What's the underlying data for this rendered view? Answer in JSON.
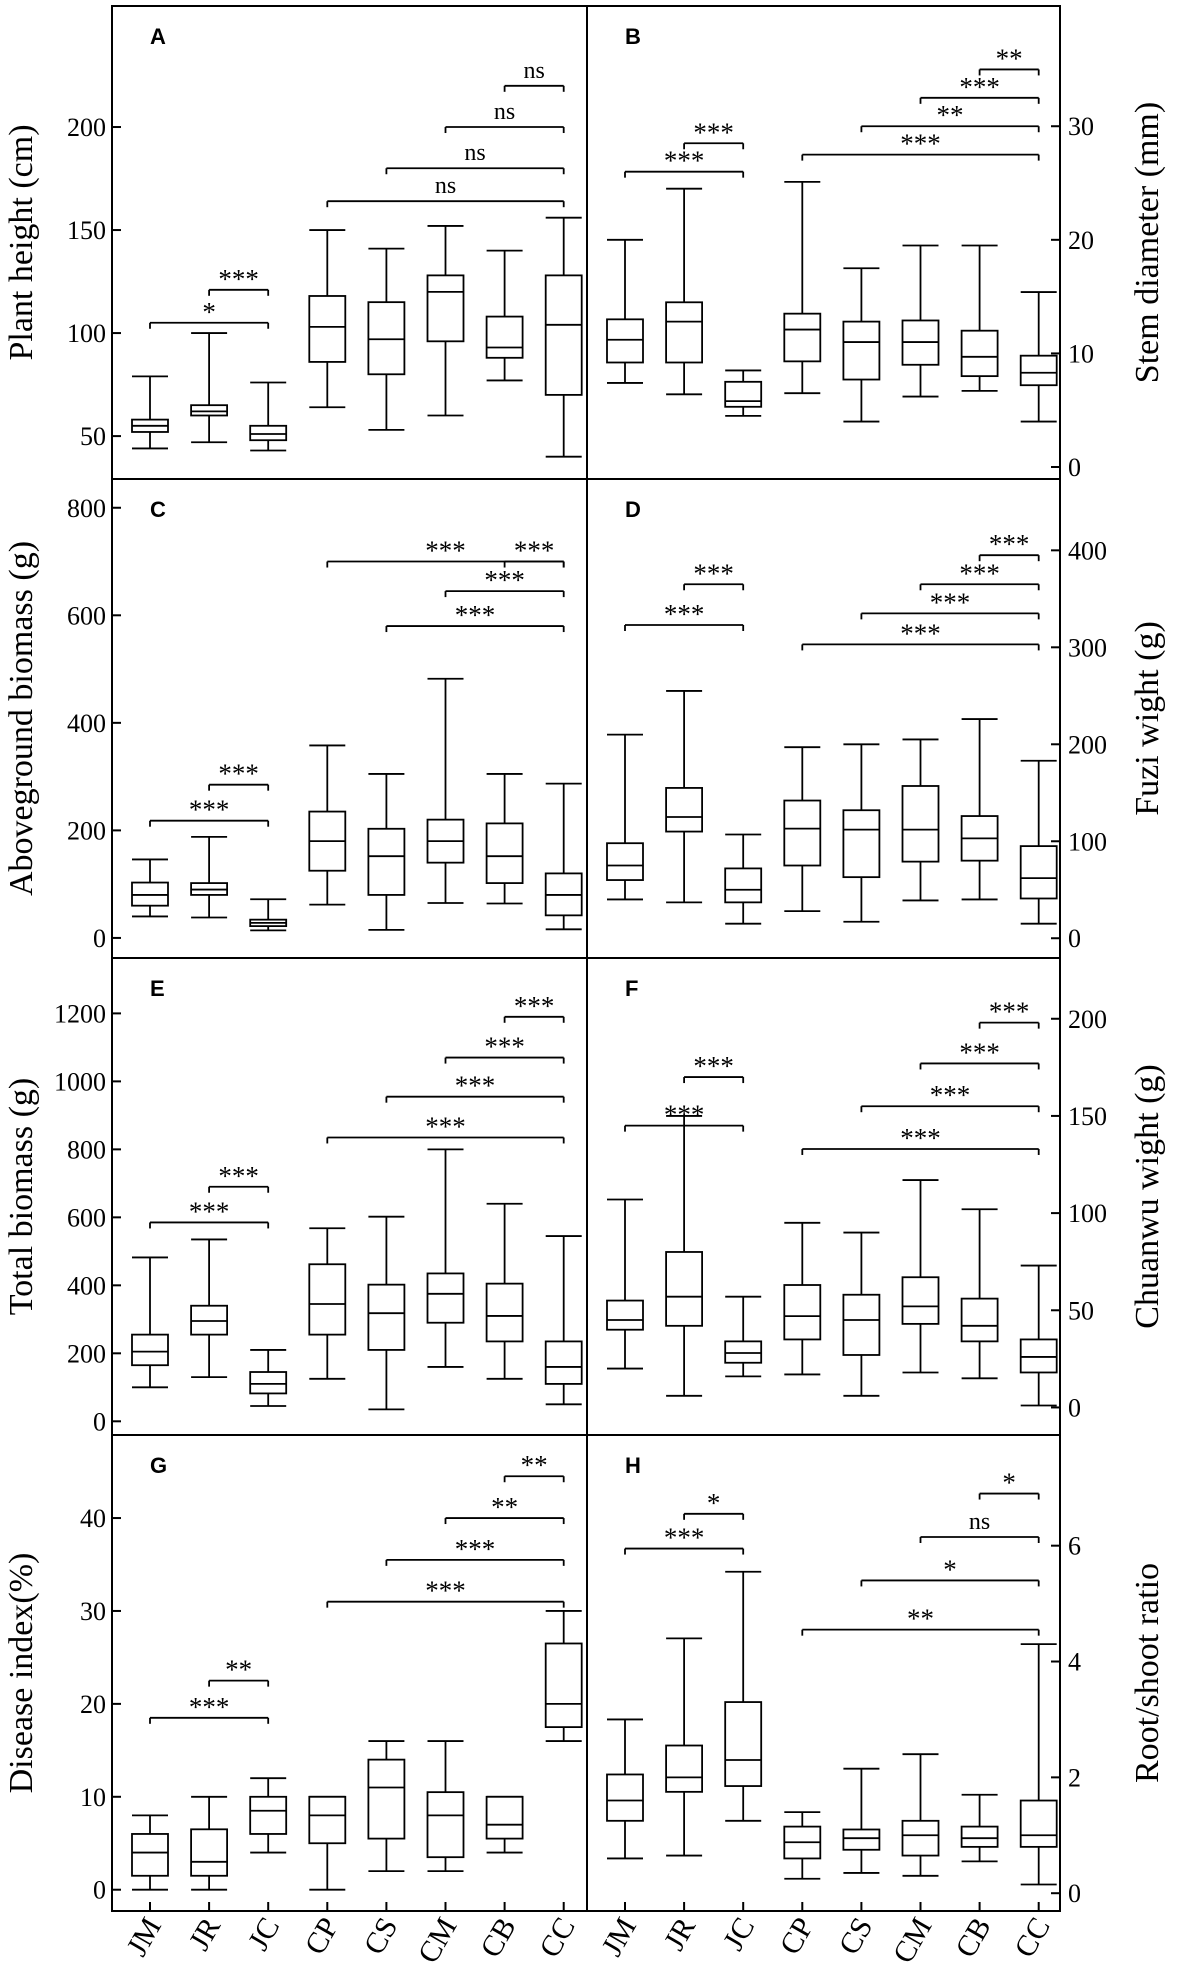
{
  "groups": [
    "JM",
    "JR",
    "JC",
    "CP",
    "CS",
    "CM",
    "CB",
    "CC"
  ],
  "chart_data": [
    {
      "type": "box",
      "id": "A",
      "panel_label": "A",
      "ylabel": "Plant height (cm)",
      "axis_side": "left",
      "ylim": [
        35,
        250
      ],
      "yticks": [
        "50",
        "100",
        "150",
        "200"
      ],
      "boxes": [
        {
          "group": "JM",
          "min": 44,
          "q1": 52,
          "median": 55,
          "q3": 58,
          "max": 79
        },
        {
          "group": "JR",
          "min": 47,
          "q1": 60,
          "median": 62,
          "q3": 65,
          "max": 100
        },
        {
          "group": "JC",
          "min": 43,
          "q1": 48,
          "median": 51,
          "q3": 55,
          "max": 76
        },
        {
          "group": "CP",
          "min": 64,
          "q1": 86,
          "median": 103,
          "q3": 118,
          "max": 150
        },
        {
          "group": "CS",
          "min": 53,
          "q1": 80,
          "median": 97,
          "q3": 115,
          "max": 141
        },
        {
          "group": "CM",
          "min": 60,
          "q1": 96,
          "median": 120,
          "q3": 128,
          "max": 152
        },
        {
          "group": "CB",
          "min": 77,
          "q1": 88,
          "median": 93,
          "q3": 108,
          "max": 140
        },
        {
          "group": "CC",
          "min": 40,
          "q1": 70,
          "median": 104,
          "q3": 128,
          "max": 156
        }
      ],
      "comparisons": [
        {
          "from": "JM",
          "to": "JC",
          "value": 105,
          "label": "*"
        },
        {
          "from": "JR",
          "to": "JC",
          "value": 121,
          "label": "***"
        },
        {
          "from": "CP",
          "to": "CC",
          "value": 164,
          "label": "ns"
        },
        {
          "from": "CS",
          "to": "CC",
          "value": 180,
          "label": "ns"
        },
        {
          "from": "CM",
          "to": "CC",
          "value": 200,
          "label": "ns"
        },
        {
          "from": "CB",
          "to": "CC",
          "value": 220,
          "label": "ns"
        }
      ]
    },
    {
      "type": "box",
      "id": "B",
      "panel_label": "B",
      "ylabel": "Stem diameter (mm)",
      "axis_side": "right",
      "ylim": [
        0,
        39
      ],
      "yticks": [
        "0",
        "10",
        "20",
        "30"
      ],
      "boxes": [
        {
          "group": "JM",
          "min": 7.4,
          "q1": 9.2,
          "median": 11.2,
          "q3": 13.0,
          "max": 20.0
        },
        {
          "group": "JR",
          "min": 6.4,
          "q1": 9.2,
          "median": 12.8,
          "q3": 14.5,
          "max": 24.5
        },
        {
          "group": "JC",
          "min": 4.5,
          "q1": 5.3,
          "median": 5.8,
          "q3": 7.5,
          "max": 8.5
        },
        {
          "group": "CP",
          "min": 6.5,
          "q1": 9.3,
          "median": 12.1,
          "q3": 13.5,
          "max": 25.1
        },
        {
          "group": "CS",
          "min": 4.0,
          "q1": 7.7,
          "median": 11.0,
          "q3": 12.8,
          "max": 17.5
        },
        {
          "group": "CM",
          "min": 6.2,
          "q1": 9.0,
          "median": 11.0,
          "q3": 12.9,
          "max": 19.5
        },
        {
          "group": "CB",
          "min": 6.7,
          "q1": 8.0,
          "median": 9.7,
          "q3": 12.0,
          "max": 19.5
        },
        {
          "group": "CC",
          "min": 4.0,
          "q1": 7.2,
          "median": 8.3,
          "q3": 9.8,
          "max": 15.4
        }
      ],
      "comparisons": [
        {
          "from": "JM",
          "to": "JC",
          "value": 26.0,
          "label": "***"
        },
        {
          "from": "JR",
          "to": "JC",
          "value": 28.5,
          "label": "***"
        },
        {
          "from": "CP",
          "to": "CC",
          "value": 27.5,
          "label": "***"
        },
        {
          "from": "CS",
          "to": "CC",
          "value": 30.0,
          "label": "**"
        },
        {
          "from": "CM",
          "to": "CC",
          "value": 32.5,
          "label": "***"
        },
        {
          "from": "CB",
          "to": "CC",
          "value": 35.0,
          "label": "**"
        }
      ]
    },
    {
      "type": "box",
      "id": "C",
      "panel_label": "C",
      "ylabel": "Aboveground biomass (g)",
      "axis_side": "left",
      "ylim": [
        -15,
        820
      ],
      "yticks": [
        "0",
        "200",
        "400",
        "600",
        "800"
      ],
      "boxes": [
        {
          "group": "JM",
          "min": 40,
          "q1": 60,
          "median": 80,
          "q3": 103,
          "max": 146
        },
        {
          "group": "JR",
          "min": 38,
          "q1": 80,
          "median": 90,
          "q3": 102,
          "max": 188
        },
        {
          "group": "JC",
          "min": 14,
          "q1": 22,
          "median": 28,
          "q3": 34,
          "max": 72
        },
        {
          "group": "CP",
          "min": 62,
          "q1": 125,
          "median": 180,
          "q3": 235,
          "max": 358
        },
        {
          "group": "CS",
          "min": 15,
          "q1": 80,
          "median": 152,
          "q3": 203,
          "max": 305
        },
        {
          "group": "CM",
          "min": 65,
          "q1": 140,
          "median": 180,
          "q3": 220,
          "max": 482
        },
        {
          "group": "CB",
          "min": 64,
          "q1": 102,
          "median": 152,
          "q3": 213,
          "max": 305
        },
        {
          "group": "CC",
          "min": 16,
          "q1": 42,
          "median": 80,
          "q3": 120,
          "max": 287
        }
      ],
      "comparisons": [
        {
          "from": "JM",
          "to": "JC",
          "value": 218,
          "label": "***"
        },
        {
          "from": "JR",
          "to": "JC",
          "value": 285,
          "label": "***"
        },
        {
          "from": "CP",
          "to": "CC",
          "value": 700,
          "label": "***"
        },
        {
          "from": "CS",
          "to": "CC",
          "value": 580,
          "label": "***"
        },
        {
          "from": "CM",
          "to": "CC",
          "value": 645,
          "label": "***"
        },
        {
          "from": "CB",
          "to": "CC",
          "value": 700,
          "label": "***"
        }
      ]
    },
    {
      "type": "box",
      "id": "D",
      "panel_label": "D",
      "ylabel": "Fuzi wight (g)",
      "axis_side": "right",
      "ylim": [
        -8,
        455
      ],
      "yticks": [
        "0",
        "100",
        "200",
        "300",
        "400"
      ],
      "boxes": [
        {
          "group": "JM",
          "min": 40,
          "q1": 60,
          "median": 75,
          "q3": 98,
          "max": 210
        },
        {
          "group": "JR",
          "min": 37,
          "q1": 110,
          "median": 125,
          "q3": 155,
          "max": 255
        },
        {
          "group": "JC",
          "min": 15,
          "q1": 37,
          "median": 50,
          "q3": 72,
          "max": 107
        },
        {
          "group": "CP",
          "min": 28,
          "q1": 75,
          "median": 113,
          "q3": 142,
          "max": 197
        },
        {
          "group": "CS",
          "min": 17,
          "q1": 63,
          "median": 112,
          "q3": 132,
          "max": 200
        },
        {
          "group": "CM",
          "min": 39,
          "q1": 79,
          "median": 112,
          "q3": 157,
          "max": 205
        },
        {
          "group": "CB",
          "min": 40,
          "q1": 80,
          "median": 103,
          "q3": 126,
          "max": 226
        },
        {
          "group": "CC",
          "min": 15,
          "q1": 41,
          "median": 62,
          "q3": 95,
          "max": 183
        }
      ],
      "comparisons": [
        {
          "from": "JM",
          "to": "JC",
          "value": 323,
          "label": "***"
        },
        {
          "from": "JR",
          "to": "JC",
          "value": 365,
          "label": "***"
        },
        {
          "from": "CP",
          "to": "CC",
          "value": 303,
          "label": "***"
        },
        {
          "from": "CS",
          "to": "CC",
          "value": 335,
          "label": "***"
        },
        {
          "from": "CM",
          "to": "CC",
          "value": 365,
          "label": "***"
        },
        {
          "from": "CB",
          "to": "CC",
          "value": 395,
          "label": "***"
        }
      ]
    },
    {
      "type": "box",
      "id": "E",
      "panel_label": "E",
      "ylabel": "Total biomass (g)",
      "axis_side": "left",
      "ylim": [
        -5,
        1310
      ],
      "yticks": [
        "0",
        "200",
        "400",
        "600",
        "800",
        "1000",
        "1200"
      ],
      "boxes": [
        {
          "group": "JM",
          "min": 100,
          "q1": 165,
          "median": 205,
          "q3": 255,
          "max": 482
        },
        {
          "group": "JR",
          "min": 130,
          "q1": 255,
          "median": 295,
          "q3": 340,
          "max": 535
        },
        {
          "group": "JC",
          "min": 45,
          "q1": 82,
          "median": 110,
          "q3": 145,
          "max": 210
        },
        {
          "group": "CP",
          "min": 125,
          "q1": 255,
          "median": 345,
          "q3": 462,
          "max": 568
        },
        {
          "group": "CS",
          "min": 35,
          "q1": 210,
          "median": 318,
          "q3": 402,
          "max": 602
        },
        {
          "group": "CM",
          "min": 160,
          "q1": 290,
          "median": 375,
          "q3": 435,
          "max": 800
        },
        {
          "group": "CB",
          "min": 125,
          "q1": 235,
          "median": 310,
          "q3": 405,
          "max": 640
        },
        {
          "group": "CC",
          "min": 50,
          "q1": 110,
          "median": 160,
          "q3": 235,
          "max": 545
        }
      ],
      "comparisons": [
        {
          "from": "JM",
          "to": "JC",
          "value": 585,
          "label": "***"
        },
        {
          "from": "JR",
          "to": "JC",
          "value": 690,
          "label": "***"
        },
        {
          "from": "CP",
          "to": "CC",
          "value": 835,
          "label": "***"
        },
        {
          "from": "CS",
          "to": "CC",
          "value": 955,
          "label": "***"
        },
        {
          "from": "CM",
          "to": "CC",
          "value": 1070,
          "label": "***"
        },
        {
          "from": "CB",
          "to": "CC",
          "value": 1190,
          "label": "***"
        }
      ]
    },
    {
      "type": "box",
      "id": "F",
      "panel_label": "F",
      "ylabel": "Chuanwu wight (g)",
      "axis_side": "right",
      "ylim": [
        -8,
        222
      ],
      "yticks": [
        "0",
        "50",
        "100",
        "150",
        "200"
      ],
      "boxes": [
        {
          "group": "JM",
          "min": 20,
          "q1": 40,
          "median": 45,
          "q3": 55,
          "max": 107
        },
        {
          "group": "JR",
          "min": 6,
          "q1": 42,
          "median": 57,
          "q3": 80,
          "max": 150
        },
        {
          "group": "JC",
          "min": 16,
          "q1": 23,
          "median": 28,
          "q3": 34,
          "max": 57
        },
        {
          "group": "CP",
          "min": 17,
          "q1": 35,
          "median": 47,
          "q3": 63,
          "max": 95
        },
        {
          "group": "CS",
          "min": 6,
          "q1": 27,
          "median": 45,
          "q3": 58,
          "max": 90
        },
        {
          "group": "CM",
          "min": 18,
          "q1": 43,
          "median": 52,
          "q3": 67,
          "max": 117
        },
        {
          "group": "CB",
          "min": 15,
          "q1": 34,
          "median": 42,
          "q3": 56,
          "max": 102
        },
        {
          "group": "CC",
          "min": 1,
          "q1": 18,
          "median": 26,
          "q3": 35,
          "max": 73
        }
      ],
      "comparisons": [
        {
          "from": "JM",
          "to": "JC",
          "value": 145,
          "label": "***"
        },
        {
          "from": "JR",
          "to": "JC",
          "value": 170,
          "label": "***"
        },
        {
          "from": "CP",
          "to": "CC",
          "value": 133,
          "label": "***"
        },
        {
          "from": "CS",
          "to": "CC",
          "value": 155,
          "label": "***"
        },
        {
          "from": "CM",
          "to": "CC",
          "value": 177,
          "label": "***"
        },
        {
          "from": "CB",
          "to": "CC",
          "value": 198,
          "label": "***"
        }
      ]
    },
    {
      "type": "box",
      "id": "G",
      "panel_label": "G",
      "ylabel": "Disease index(%)",
      "axis_side": "left",
      "ylim": [
        -1,
        47
      ],
      "yticks": [
        "0",
        "10",
        "20",
        "30",
        "40"
      ],
      "boxes": [
        {
          "group": "JM",
          "min": 0,
          "q1": 1.5,
          "median": 4,
          "q3": 6,
          "max": 8
        },
        {
          "group": "JR",
          "min": 0,
          "q1": 1.5,
          "median": 3,
          "q3": 6.5,
          "max": 10
        },
        {
          "group": "JC",
          "min": 4,
          "q1": 6,
          "median": 8.5,
          "q3": 10,
          "max": 12
        },
        {
          "group": "CP",
          "min": 0,
          "q1": 5,
          "median": 8,
          "q3": 10,
          "max": 10
        },
        {
          "group": "CS",
          "min": 2,
          "q1": 5.5,
          "median": 11,
          "q3": 14,
          "max": 16
        },
        {
          "group": "CM",
          "min": 2,
          "q1": 3.5,
          "median": 8,
          "q3": 10.5,
          "max": 16
        },
        {
          "group": "CB",
          "min": 4,
          "q1": 5.5,
          "median": 7,
          "q3": 10,
          "max": 10
        },
        {
          "group": "CC",
          "min": 16,
          "q1": 17.5,
          "median": 20,
          "q3": 26.5,
          "max": 30
        }
      ],
      "comparisons": [
        {
          "from": "JM",
          "to": "JC",
          "value": 18.5,
          "label": "***"
        },
        {
          "from": "JR",
          "to": "JC",
          "value": 22.5,
          "label": "**"
        },
        {
          "from": "CP",
          "to": "CC",
          "value": 31,
          "label": "***"
        },
        {
          "from": "CS",
          "to": "CC",
          "value": 35.5,
          "label": "***"
        },
        {
          "from": "CM",
          "to": "CC",
          "value": 40,
          "label": "**"
        },
        {
          "from": "CB",
          "to": "CC",
          "value": 44.5,
          "label": "**"
        }
      ]
    },
    {
      "type": "box",
      "id": "H",
      "panel_label": "H",
      "ylabel": "Root/shoot  ratio",
      "axis_side": "right",
      "ylim": [
        -0.1,
        7.6
      ],
      "yticks": [
        "0",
        "2",
        "4",
        "6"
      ],
      "boxes": [
        {
          "group": "JM",
          "min": 0.6,
          "q1": 1.25,
          "median": 1.6,
          "q3": 2.05,
          "max": 3.0
        },
        {
          "group": "JR",
          "min": 0.65,
          "q1": 1.75,
          "median": 2.0,
          "q3": 2.55,
          "max": 4.4
        },
        {
          "group": "JC",
          "min": 1.25,
          "q1": 1.85,
          "median": 2.3,
          "q3": 3.3,
          "max": 5.55
        },
        {
          "group": "CP",
          "min": 0.25,
          "q1": 0.6,
          "median": 0.88,
          "q3": 1.15,
          "max": 1.4
        },
        {
          "group": "CS",
          "min": 0.35,
          "q1": 0.75,
          "median": 0.95,
          "q3": 1.1,
          "max": 2.15
        },
        {
          "group": "CM",
          "min": 0.3,
          "q1": 0.65,
          "median": 1.0,
          "q3": 1.25,
          "max": 2.4
        },
        {
          "group": "CB",
          "min": 0.55,
          "q1": 0.8,
          "median": 0.95,
          "q3": 1.15,
          "max": 1.7
        },
        {
          "group": "CC",
          "min": 0.15,
          "q1": 0.8,
          "median": 1.0,
          "q3": 1.6,
          "max": 4.3
        }
      ],
      "comparisons": [
        {
          "from": "JM",
          "to": "JC",
          "value": 5.95,
          "label": "***"
        },
        {
          "from": "JR",
          "to": "JC",
          "value": 6.55,
          "label": "*"
        },
        {
          "from": "CP",
          "to": "CC",
          "value": 4.55,
          "label": "**"
        },
        {
          "from": "CS",
          "to": "CC",
          "value": 5.4,
          "label": "*"
        },
        {
          "from": "CM",
          "to": "CC",
          "value": 6.15,
          "label": "ns"
        },
        {
          "from": "CB",
          "to": "CC",
          "value": 6.9,
          "label": "*"
        }
      ]
    }
  ]
}
